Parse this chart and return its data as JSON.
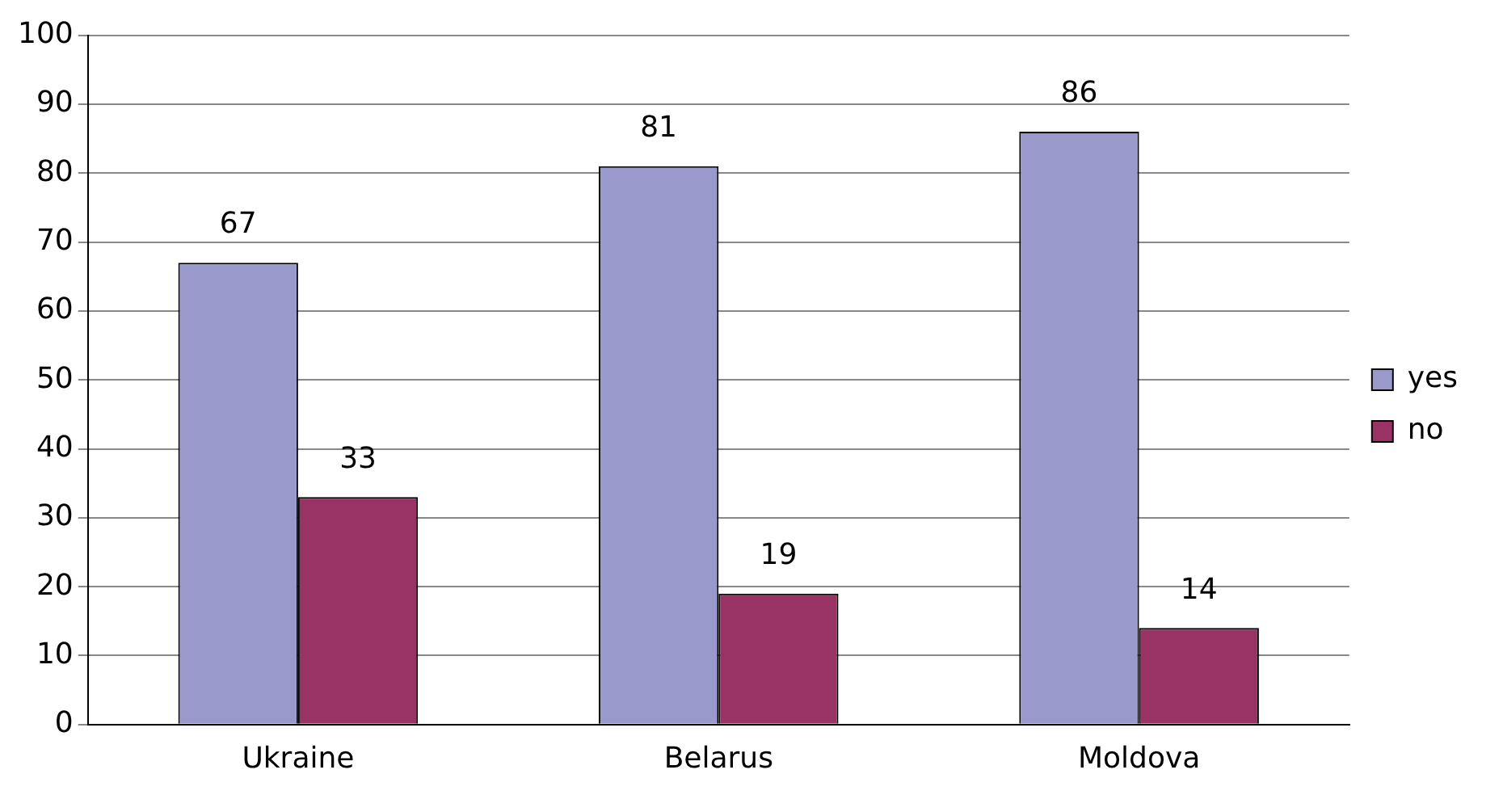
{
  "chart_data": {
    "type": "bar",
    "categories": [
      "Ukraine",
      "Belarus",
      "Moldova"
    ],
    "series": [
      {
        "name": "yes",
        "color": "#9999cc",
        "values": [
          67,
          81,
          86
        ]
      },
      {
        "name": "no",
        "color": "#993366",
        "values": [
          33,
          19,
          14
        ]
      }
    ],
    "ylim": [
      0,
      100
    ],
    "yticks": [
      0,
      10,
      20,
      30,
      40,
      50,
      60,
      70,
      80,
      90,
      100
    ],
    "grid": "y",
    "legend": "right",
    "data_labels": true
  }
}
